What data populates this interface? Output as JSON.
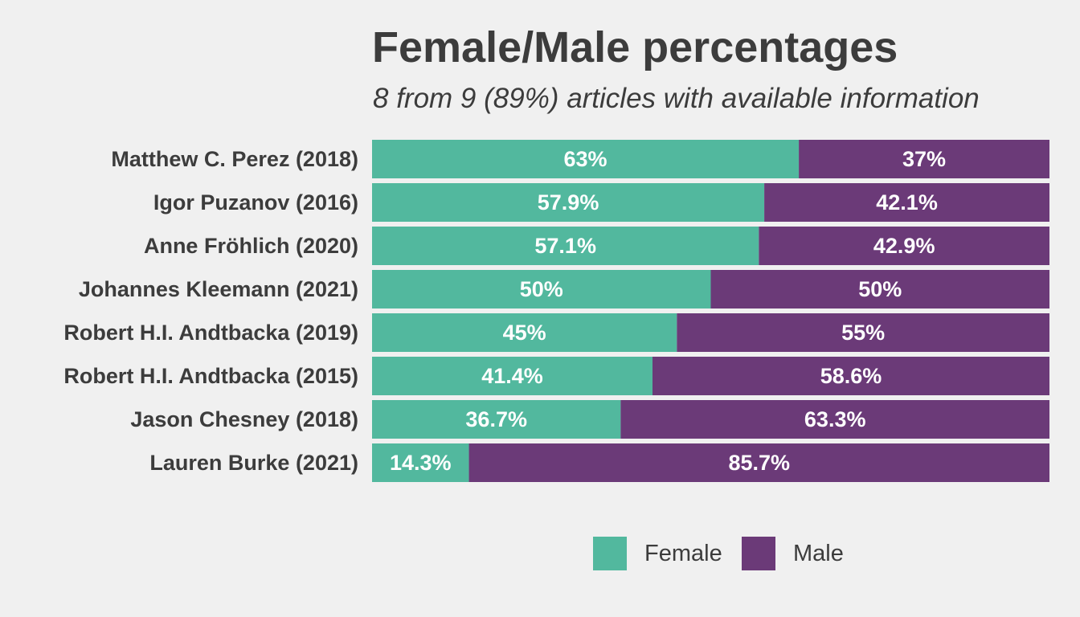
{
  "chart_data": {
    "type": "bar",
    "orientation": "horizontal",
    "stacked": "percent",
    "title": "Female/Male percentages",
    "subtitle": "8 from 9 (89%) articles with available information",
    "categories": [
      "Matthew C. Perez (2018)",
      "Igor Puzanov (2016)",
      "Anne Fröhlich (2020)",
      "Johannes Kleemann (2021)",
      "Robert H.I. Andtbacka (2019)",
      "Robert H.I. Andtbacka (2015)",
      "Jason Chesney (2018)",
      "Lauren Burke (2021)"
    ],
    "series": [
      {
        "name": "Female",
        "color": "#52b89e",
        "values": [
          63,
          57.9,
          57.1,
          50,
          45,
          41.4,
          36.7,
          14.3
        ],
        "labels": [
          "63%",
          "57.9%",
          "57.1%",
          "50%",
          "45%",
          "41.4%",
          "36.7%",
          "14.3%"
        ]
      },
      {
        "name": "Male",
        "color": "#6b3a78",
        "values": [
          37,
          42.1,
          42.9,
          50,
          55,
          58.6,
          63.3,
          85.7
        ],
        "labels": [
          "37%",
          "42.1%",
          "42.9%",
          "50%",
          "55%",
          "58.6%",
          "63.3%",
          "85.7%"
        ]
      }
    ],
    "xlim": [
      0,
      100
    ],
    "grid": false,
    "legend_position": "bottom"
  }
}
